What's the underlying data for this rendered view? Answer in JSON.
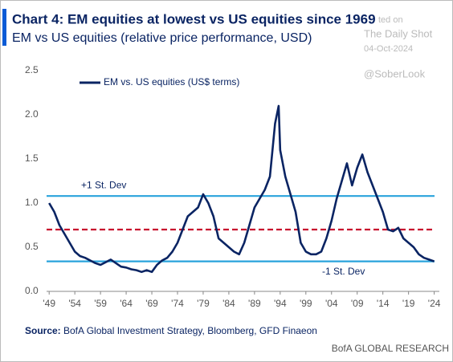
{
  "chart_data": {
    "type": "line",
    "title": "Chart 4: EM equities at lowest vs US equities since 1969",
    "subtitle": "EM vs US equities (relative price performance, USD)",
    "watermark": [
      "ted on",
      "The Daily Shot",
      "04-Oct-2024",
      "@SoberLook"
    ],
    "source_label": "Source:",
    "source": "BofA Global Investment Strategy, Bloomberg, GFD Finaeon",
    "footer": "BofA GLOBAL RESEARCH",
    "x": [
      1949,
      1950,
      1951,
      1952,
      1953,
      1954,
      1955,
      1956,
      1957,
      1958,
      1959,
      1960,
      1961,
      1962,
      1963,
      1964,
      1965,
      1966,
      1967,
      1968,
      1969,
      1970,
      1971,
      1972,
      1973,
      1974,
      1975,
      1976,
      1977,
      1978,
      1979,
      1980,
      1981,
      1982,
      1983,
      1984,
      1985,
      1986,
      1987,
      1988,
      1989,
      1990,
      1991,
      1992,
      1993,
      1993.7,
      1994,
      1995,
      1996,
      1997,
      1998,
      1999,
      2000,
      2001,
      2002,
      2003,
      2004,
      2005,
      2006,
      2007,
      2008,
      2009,
      2010,
      2011,
      2012,
      2013,
      2014,
      2015,
      2016,
      2017,
      2018,
      2019,
      2020,
      2021,
      2022,
      2023,
      2024
    ],
    "series": [
      {
        "name": "EM vs. US equities (US$ terms)",
        "color": "#0a2463",
        "values": [
          1.0,
          0.9,
          0.75,
          0.65,
          0.55,
          0.45,
          0.4,
          0.38,
          0.35,
          0.32,
          0.3,
          0.33,
          0.36,
          0.32,
          0.28,
          0.27,
          0.25,
          0.24,
          0.22,
          0.24,
          0.22,
          0.3,
          0.35,
          0.38,
          0.45,
          0.55,
          0.7,
          0.85,
          0.9,
          0.95,
          1.1,
          1.0,
          0.85,
          0.6,
          0.55,
          0.5,
          0.45,
          0.42,
          0.55,
          0.75,
          0.95,
          1.05,
          1.15,
          1.3,
          1.9,
          2.1,
          1.6,
          1.3,
          1.1,
          0.9,
          0.55,
          0.45,
          0.42,
          0.42,
          0.45,
          0.6,
          0.8,
          1.05,
          1.25,
          1.45,
          1.2,
          1.4,
          1.55,
          1.35,
          1.2,
          1.05,
          0.9,
          0.7,
          0.68,
          0.72,
          0.6,
          0.55,
          0.5,
          0.42,
          0.38,
          0.36,
          0.34
        ]
      }
    ],
    "reference_lines": [
      {
        "value": 1.08,
        "label": "+1 St. Dev",
        "color": "#29a3dc"
      },
      {
        "value": 0.7,
        "color": "#c8102e",
        "dashed": true
      },
      {
        "value": 0.34,
        "label": "-1 St. Dev",
        "color": "#29a3dc"
      }
    ],
    "xlim": [
      1948.5,
      2025
    ],
    "xticks": [
      {
        "value": 1949,
        "label": "'49"
      },
      {
        "value": 1954,
        "label": "'54"
      },
      {
        "value": 1959,
        "label": "'59"
      },
      {
        "value": 1964,
        "label": "'64"
      },
      {
        "value": 1969,
        "label": "'69"
      },
      {
        "value": 1974,
        "label": "'74"
      },
      {
        "value": 1979,
        "label": "'79"
      },
      {
        "value": 1984,
        "label": "'84"
      },
      {
        "value": 1989,
        "label": "'89"
      },
      {
        "value": 1994,
        "label": "'94"
      },
      {
        "value": 1999,
        "label": "'99"
      },
      {
        "value": 2004,
        "label": "'04"
      },
      {
        "value": 2009,
        "label": "'09"
      },
      {
        "value": 2014,
        "label": "'14"
      },
      {
        "value": 2019,
        "label": "'19"
      },
      {
        "value": 2024,
        "label": "'24"
      }
    ],
    "ylim": [
      0,
      2.5
    ],
    "yticks": [
      {
        "value": 0,
        "label": "0.0"
      },
      {
        "value": 0.5,
        "label": "0.5"
      },
      {
        "value": 1,
        "label": "1.0"
      },
      {
        "value": 1.5,
        "label": "1.5"
      },
      {
        "value": 2,
        "label": "2.0"
      },
      {
        "value": 2.5,
        "label": "2.5"
      }
    ],
    "grid": false
  }
}
